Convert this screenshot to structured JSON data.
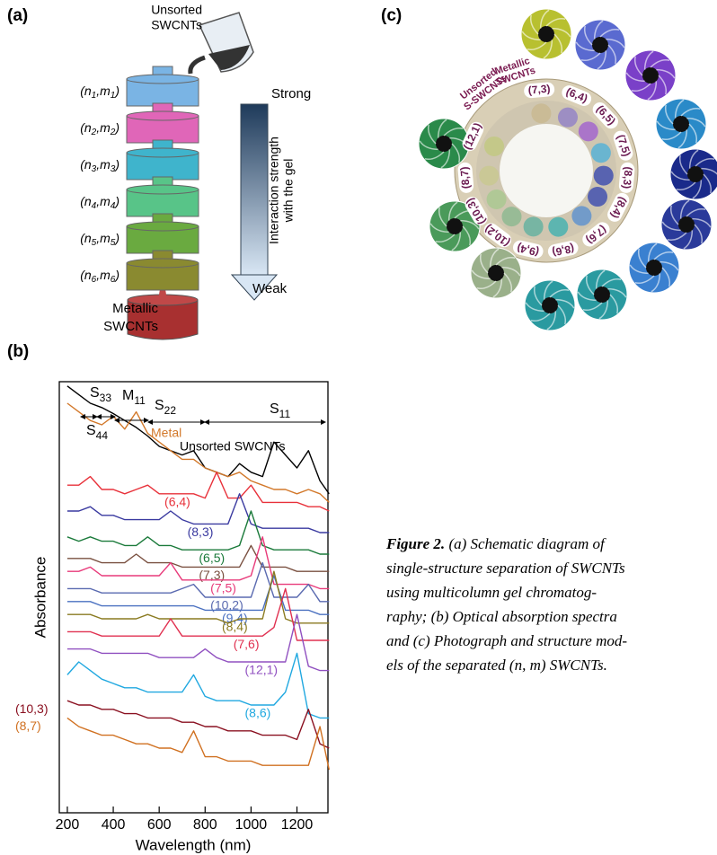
{
  "panel_labels": [
    "(a)",
    "(b)",
    "(c)"
  ],
  "panel_a": {
    "source": [
      "Unsorted",
      "SWCNTs"
    ],
    "columns": [
      [
        "(n",
        "1",
        ",m",
        "1",
        ")"
      ],
      [
        "(n",
        "2",
        ",m",
        "2",
        ")"
      ],
      [
        "(n",
        "3",
        ",m",
        "3",
        ")"
      ],
      [
        "(n",
        "4",
        ",m",
        "4",
        ")"
      ],
      [
        "(n",
        "5",
        ",m",
        "5",
        ")"
      ],
      [
        "(n",
        "6",
        ",m",
        "6",
        ")"
      ]
    ],
    "strong": "Strong",
    "weak": "Weak",
    "arrow_label": [
      "Interaction strength",
      "with the gel"
    ],
    "output": [
      "Metallic",
      "SWCNTs"
    ]
  },
  "chart_data": {
    "type": "line",
    "xlabel": "Wavelength (nm)",
    "ylabel": "Absorbance",
    "x": [
      200,
      250,
      300,
      350,
      400,
      450,
      500,
      550,
      600,
      650,
      700,
      750,
      800,
      850,
      900,
      950,
      1000,
      1050,
      1100,
      1150,
      1200,
      1250,
      1300,
      1340
    ],
    "xlim": [
      165,
      1335
    ],
    "xticks": [
      200,
      400,
      600,
      800,
      1000,
      1200
    ],
    "ylim": [
      0,
      100
    ],
    "series": [
      {
        "name": "Unsorted SWCNTs",
        "color": "#000000",
        "values": [
          99,
          97,
          95,
          94,
          92.6,
          91,
          89.4,
          87.4,
          85,
          84,
          83,
          84,
          80,
          79,
          78,
          81,
          79,
          78,
          86,
          83,
          80,
          84,
          77,
          74
        ]
      },
      {
        "name": "Metal",
        "color": "#d2782a",
        "values": [
          95,
          93,
          91,
          90,
          92,
          89,
          93,
          88,
          86,
          84,
          82,
          82,
          80,
          79,
          78,
          79,
          77,
          76,
          75,
          75,
          74,
          75,
          74,
          72
        ]
      },
      {
        "name": "(6,4)",
        "color": "#e8313a",
        "values": [
          76,
          76,
          78,
          75,
          75,
          74,
          75,
          76,
          74,
          74,
          74,
          74,
          73,
          79,
          73,
          73,
          76,
          72,
          72,
          72,
          72,
          71,
          71,
          70
        ]
      },
      {
        "name": "(8,3)",
        "color": "#3a3aa0",
        "values": [
          70,
          70,
          71,
          69,
          69,
          68,
          68,
          68,
          68,
          70,
          68,
          67,
          67,
          67,
          67,
          74,
          67,
          66,
          66,
          66,
          66,
          66,
          65,
          65
        ]
      },
      {
        "name": "(6,5)",
        "color": "#1a7a3a",
        "values": [
          64,
          63,
          64,
          63,
          63,
          62,
          62,
          64,
          62,
          62,
          61,
          61,
          61,
          61,
          61,
          62,
          70,
          62,
          61,
          61,
          61,
          61,
          60,
          60
        ]
      },
      {
        "name": "(7,3)",
        "color": "#7a5040",
        "values": [
          59,
          59,
          59,
          58,
          58,
          58,
          60,
          58,
          58,
          58,
          57,
          57,
          57,
          57,
          57,
          57,
          62,
          57,
          57,
          57,
          56,
          56,
          56,
          56
        ]
      },
      {
        "name": "(7,5)",
        "color": "#e83a7a",
        "values": [
          56,
          56,
          57,
          55,
          55,
          55,
          55,
          55,
          55,
          58,
          54,
          54,
          54,
          54,
          54,
          54,
          55,
          64,
          53,
          53,
          53,
          53,
          52,
          52
        ]
      },
      {
        "name": "(10,2)",
        "color": "#5a6ab0",
        "values": [
          52,
          52,
          52,
          51,
          51,
          51,
          51,
          51,
          51,
          51,
          52,
          53,
          50,
          50,
          50,
          50,
          50,
          58,
          50,
          50,
          50,
          53,
          49,
          49
        ]
      },
      {
        "name": "(9,4)",
        "color": "#4a70c0",
        "values": [
          49,
          49,
          49,
          48,
          48,
          48,
          48,
          48,
          48,
          48,
          48,
          48,
          47,
          47,
          47,
          47,
          47,
          47,
          55,
          47,
          47,
          47,
          46,
          46
        ]
      },
      {
        "name": "(8,4)",
        "color": "#8a7a20",
        "values": [
          46,
          46,
          46,
          45,
          45,
          45,
          45,
          46,
          45,
          45,
          45,
          45,
          45,
          45,
          44,
          45,
          45,
          45,
          56,
          45,
          44,
          44,
          44,
          44
        ]
      },
      {
        "name": "(7,6)",
        "color": "#e03050",
        "values": [
          42,
          42,
          42,
          41,
          41,
          41,
          41,
          41,
          41,
          45,
          41,
          41,
          41,
          41,
          41,
          41,
          41,
          41,
          43,
          52,
          40,
          40,
          40,
          40
        ]
      },
      {
        "name": "(12,1)",
        "color": "#9050c0",
        "values": [
          38,
          38,
          38,
          37,
          37,
          37,
          37,
          37,
          36,
          36,
          36,
          36,
          38,
          36,
          35,
          35,
          35,
          35,
          35,
          35,
          46,
          34,
          33,
          33
        ]
      },
      {
        "name": "(8,6)",
        "color": "#20a8e0",
        "values": [
          32,
          35,
          33,
          31,
          30,
          29,
          29,
          28,
          28,
          28,
          28,
          32,
          27,
          26,
          26,
          26,
          25,
          25,
          25,
          28,
          37,
          23,
          22,
          22
        ]
      },
      {
        "name": "(10,3)",
        "color": "#8a1020",
        "values": [
          26,
          25,
          25,
          24,
          24,
          23,
          23,
          22,
          22,
          22,
          21,
          21,
          20,
          20,
          19,
          19,
          19,
          18,
          18,
          18,
          17,
          24,
          16,
          15
        ]
      },
      {
        "name": "(8,7)",
        "color": "#d07020",
        "values": [
          22,
          20,
          19,
          18,
          18,
          17,
          16,
          16,
          15,
          15,
          14,
          19,
          13,
          13,
          12,
          12,
          12,
          11,
          11,
          11,
          11,
          11,
          20,
          10
        ]
      }
    ],
    "annotations": [
      {
        "main": "S",
        "sub": "33"
      },
      {
        "main": "M",
        "sub": "11"
      },
      {
        "main": "S",
        "sub": "22"
      },
      {
        "main": "S",
        "sub": "11"
      },
      {
        "main": "S",
        "sub": "44"
      }
    ]
  },
  "panel_c": {
    "groups": [
      [
        "Unsorted",
        "S-SWCNTs"
      ],
      [
        "Metallic",
        "SWCNTs"
      ]
    ],
    "labels": [
      "(7,3)",
      "(6,4)",
      "(6,5)",
      "(7,5)",
      "(8,3)",
      "(8,4)",
      "(7,6)",
      "(8,6)",
      "(9,4)",
      "(10,2)",
      "(10,3)",
      "(8,7)",
      "(12,1)"
    ]
  },
  "caption": {
    "label": "Figure 2.",
    "first": "(a) Schematic diagram of",
    "lines": [
      "single-structure separation of SWCNTs",
      "using multicolumn gel chromatog-",
      "raphy; (b) Optical absorption spectra",
      "and (c) Photograph and structure mod-",
      "els of the separated (n, m) SWCNTs."
    ]
  }
}
